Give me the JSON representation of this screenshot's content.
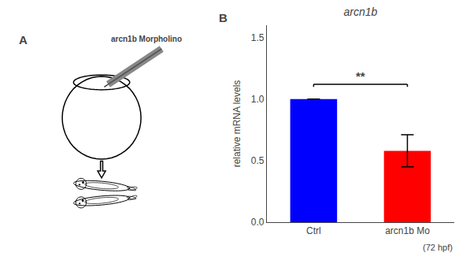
{
  "chart_data": {
    "type": "bar",
    "title": "arcn1b",
    "categories": [
      "Ctrl",
      "arcn1b Mo"
    ],
    "values": [
      1.0,
      0.58
    ],
    "errors": [
      null,
      0.13
    ],
    "colors": [
      "#0000FF",
      "#FF0000"
    ],
    "ylabel": "relative mRNA levels",
    "ylim": [
      0,
      1.6
    ],
    "yticks": [
      {
        "value": 0.0,
        "label": "0.0"
      },
      0.5,
      {
        "value": 1.0,
        "label": "1.0"
      },
      1.5
    ],
    "grid": false,
    "annotations": [
      {
        "text": "**",
        "y": 1.12,
        "between": [
          "Ctrl",
          "arcn1b Mo"
        ]
      },
      {
        "text": "(72 hpf)"
      },
      {
        "text": "A"
      },
      {
        "text": "B"
      },
      {
        "text": "arcn1b Morpholino"
      }
    ]
  }
}
